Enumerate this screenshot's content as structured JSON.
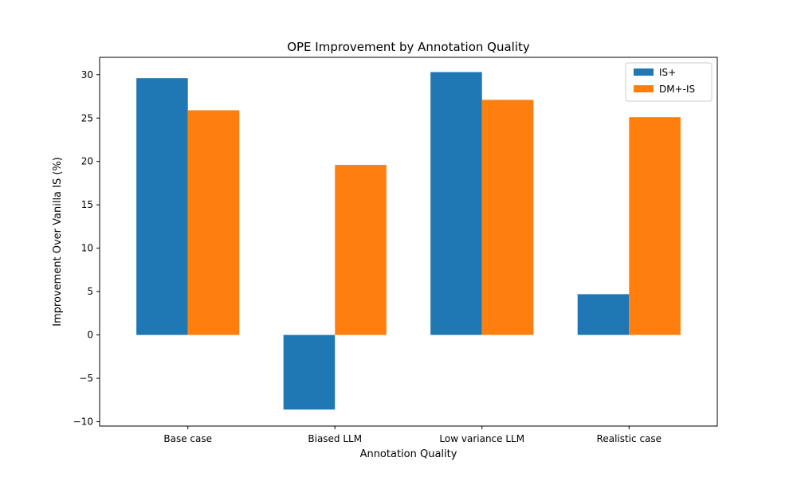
{
  "chart_data": {
    "type": "bar",
    "title": "OPE Improvement by Annotation Quality",
    "xlabel": "Annotation Quality",
    "ylabel": "Improvement Over Vanilla IS (%)",
    "categories": [
      "Base case",
      "Biased LLM",
      "Low variance LLM",
      "Realistic case"
    ],
    "series": [
      {
        "name": "IS+",
        "values": [
          29.6,
          -8.6,
          30.3,
          4.7
        ],
        "color": "#1f77b4"
      },
      {
        "name": "DM+-IS",
        "values": [
          25.9,
          19.6,
          27.1,
          25.1
        ],
        "color": "#ff7f0e"
      }
    ],
    "ylim": [
      -10.5,
      32
    ],
    "yticks": [
      -10,
      -5,
      0,
      5,
      10,
      15,
      20,
      25,
      30
    ],
    "ytick_labels": [
      "−10",
      "−5",
      "0",
      "5",
      "10",
      "15",
      "20",
      "25",
      "30"
    ],
    "legend_position": "top-right",
    "grid": false
  }
}
